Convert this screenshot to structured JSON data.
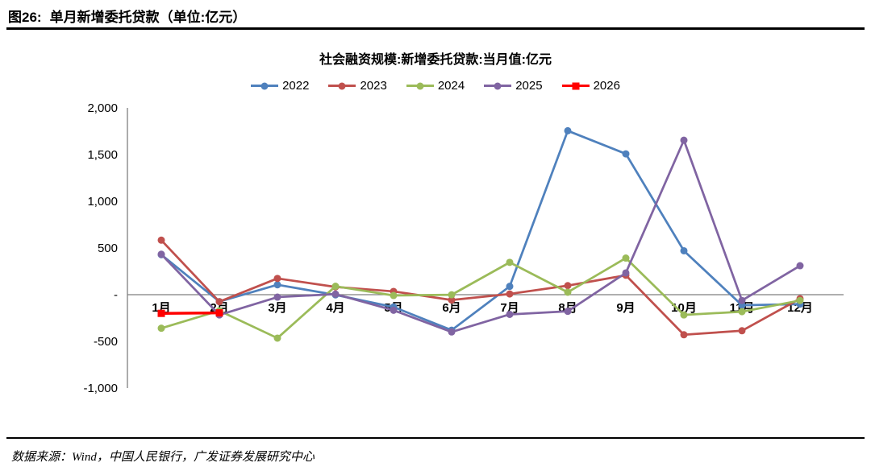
{
  "figure": {
    "caption_prefix": "图26:",
    "caption_title": "单月新增委托贷款（单位:亿元）",
    "source": "数据来源：Wind，中国人民银行，广发证券发展研究中心"
  },
  "chart_data": {
    "type": "line",
    "title": "社会融资规模:新增委托贷款:当月值:亿元",
    "categories": [
      "1月",
      "2月",
      "3月",
      "4月",
      "5月",
      "6月",
      "7月",
      "8月",
      "9月",
      "10月",
      "11月",
      "12月"
    ],
    "ylim": [
      -1000,
      2000
    ],
    "y_ticks": [
      {
        "value": 2000,
        "label": "2,000"
      },
      {
        "value": 1500,
        "label": "1,500"
      },
      {
        "value": 1000,
        "label": "1,000"
      },
      {
        "value": 500,
        "label": "500"
      },
      {
        "value": 0,
        "label": "-"
      },
      {
        "value": -500,
        "label": "-500"
      },
      {
        "value": -1000,
        "label": "-1,000"
      }
    ],
    "grid": false,
    "legend_position": "top",
    "series": [
      {
        "name": "2022",
        "color": "#4F81BD",
        "marker": "circle",
        "values": [
          428,
          -74,
          106,
          -2,
          -132,
          -380,
          89,
          1755,
          1508,
          470,
          -113,
          -101
        ]
      },
      {
        "name": "2023",
        "color": "#C0504D",
        "marker": "circle",
        "values": [
          584,
          -75,
          174,
          83,
          35,
          -57,
          8,
          97,
          208,
          -429,
          -386,
          -43
        ]
      },
      {
        "name": "2024",
        "color": "#9BBB59",
        "marker": "circle",
        "values": [
          -359,
          -172,
          -465,
          90,
          -9,
          -1,
          346,
          26,
          392,
          -217,
          -182,
          -62
        ]
      },
      {
        "name": "2025",
        "color": "#8064A2",
        "marker": "circle",
        "values": [
          433,
          -217,
          -26,
          6,
          -167,
          -399,
          -211,
          -178,
          233,
          1654,
          -62,
          310
        ]
      },
      {
        "name": "2026",
        "color": "#FF0000",
        "marker": "square",
        "values": [
          -200,
          -195,
          null,
          null,
          null,
          null,
          null,
          null,
          null,
          null,
          null,
          null
        ]
      }
    ]
  }
}
